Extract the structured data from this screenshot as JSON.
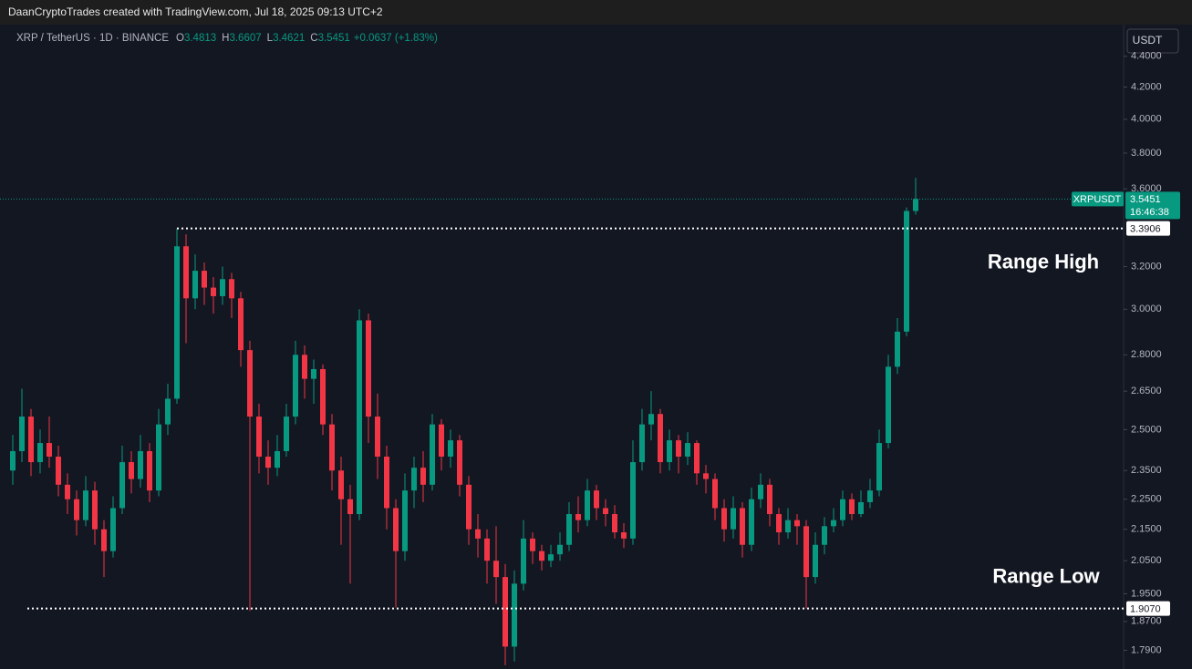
{
  "header": "DaanCryptoTrades created with TradingView.com, Jul 18, 2025 09:13 UTC+2",
  "currency_button": "USDT",
  "chart_data": {
    "type": "candlestick",
    "title": "XRP / TetherUS · 1D · BINANCE",
    "ohlc_labels": [
      "O",
      "H",
      "L",
      "C"
    ],
    "change": "+0.0637 (+1.83%)",
    "log_scale": true,
    "grid": false,
    "up_color": "#089981",
    "down_color": "#f23645",
    "ylim": [
      1.74,
      4.61
    ],
    "yticks": [
      {
        "value": 4.4,
        "label": "4.4000"
      },
      {
        "value": 4.2,
        "label": "4.2000"
      },
      {
        "value": 4.0,
        "label": "4.0000"
      },
      {
        "value": 3.8,
        "label": "3.8000"
      },
      {
        "value": 3.6,
        "label": "3.6000"
      },
      {
        "value": 3.2,
        "label": "3.2000"
      },
      {
        "value": 3.0,
        "label": "3.0000"
      },
      {
        "value": 2.8,
        "label": "2.8000"
      },
      {
        "value": 2.65,
        "label": "2.6500"
      },
      {
        "value": 2.5,
        "label": "2.5000"
      },
      {
        "value": 2.35,
        "label": "2.3500"
      },
      {
        "value": 2.25,
        "label": "2.2500"
      },
      {
        "value": 2.15,
        "label": "2.1500"
      },
      {
        "value": 2.05,
        "label": "2.0500"
      },
      {
        "value": 1.95,
        "label": "1.9500"
      },
      {
        "value": 1.87,
        "label": "1.8700"
      },
      {
        "value": 1.79,
        "label": "1.7900"
      }
    ],
    "series": [
      {
        "name": "XRPUSDT",
        "countdown": "16:46:38",
        "open": [
          2.35,
          2.42,
          2.55,
          2.38,
          2.45,
          2.4,
          2.3,
          2.25,
          2.18,
          2.28,
          2.15,
          2.08,
          2.22,
          2.38,
          2.32,
          2.42,
          2.28,
          2.52,
          2.62,
          3.3,
          3.05,
          3.18,
          3.1,
          3.06,
          3.14,
          3.05,
          2.82,
          2.55,
          2.4,
          2.36,
          2.42,
          2.55,
          2.8,
          2.7,
          2.74,
          2.52,
          2.35,
          2.25,
          2.2,
          2.95,
          2.55,
          2.4,
          2.22,
          2.08,
          2.28,
          2.36,
          2.3,
          2.52,
          2.4,
          2.46,
          2.3,
          2.15,
          2.12,
          2.05,
          2.0,
          1.8,
          1.98,
          2.12,
          2.08,
          2.05,
          2.07,
          2.1,
          2.2,
          2.18,
          2.28,
          2.22,
          2.2,
          2.14,
          2.12,
          2.38,
          2.52,
          2.56,
          2.38,
          2.46,
          2.4,
          2.45,
          2.34,
          2.32,
          2.22,
          2.15,
          2.22,
          2.1,
          2.25,
          2.3,
          2.2,
          2.14,
          2.18,
          2.16,
          2.0,
          2.1,
          2.16,
          2.18,
          2.25,
          2.2,
          2.24,
          2.28,
          2.45,
          2.75,
          2.9,
          3.4813
        ],
        "high": [
          2.48,
          2.66,
          2.58,
          2.5,
          2.55,
          2.44,
          2.34,
          2.28,
          2.33,
          2.31,
          2.18,
          2.26,
          2.44,
          2.42,
          2.48,
          2.45,
          2.58,
          2.68,
          3.39,
          3.36,
          3.26,
          3.22,
          3.15,
          3.2,
          3.17,
          3.08,
          2.86,
          2.6,
          2.46,
          2.48,
          2.6,
          2.86,
          2.84,
          2.78,
          2.76,
          2.56,
          2.4,
          2.3,
          3.0,
          2.98,
          2.64,
          2.44,
          2.25,
          2.34,
          2.4,
          2.42,
          2.56,
          2.54,
          2.5,
          2.48,
          2.33,
          2.2,
          2.15,
          2.16,
          2.04,
          2.02,
          2.18,
          2.14,
          2.1,
          2.1,
          2.14,
          2.24,
          2.26,
          2.32,
          2.3,
          2.25,
          2.23,
          2.17,
          2.46,
          2.58,
          2.65,
          2.58,
          2.5,
          2.48,
          2.49,
          2.46,
          2.37,
          2.34,
          2.25,
          2.26,
          2.24,
          2.29,
          2.34,
          2.32,
          2.22,
          2.22,
          2.2,
          2.18,
          2.14,
          2.19,
          2.22,
          2.28,
          2.27,
          2.28,
          2.32,
          2.5,
          2.8,
          2.96,
          3.5,
          3.6607
        ],
        "low": [
          2.3,
          2.38,
          2.33,
          2.34,
          2.36,
          2.26,
          2.2,
          2.13,
          2.16,
          2.1,
          2.0,
          2.06,
          2.2,
          2.27,
          2.29,
          2.24,
          2.26,
          2.48,
          2.6,
          2.85,
          3.0,
          3.02,
          2.98,
          3.02,
          2.96,
          2.75,
          1.9,
          2.34,
          2.3,
          2.33,
          2.4,
          2.52,
          2.62,
          2.6,
          2.48,
          2.28,
          2.1,
          1.98,
          2.18,
          2.45,
          2.32,
          2.15,
          1.91,
          2.05,
          2.22,
          2.24,
          2.28,
          2.35,
          2.36,
          2.26,
          2.1,
          2.06,
          1.98,
          1.92,
          1.75,
          1.76,
          1.96,
          2.04,
          2.02,
          2.03,
          2.05,
          2.08,
          2.14,
          2.16,
          2.18,
          2.16,
          2.12,
          2.09,
          2.1,
          2.35,
          2.46,
          2.34,
          2.35,
          2.34,
          2.37,
          2.3,
          2.27,
          2.18,
          2.11,
          2.12,
          2.06,
          2.08,
          2.22,
          2.16,
          2.1,
          2.12,
          2.1,
          1.907,
          1.98,
          2.07,
          2.14,
          2.16,
          2.18,
          2.19,
          2.22,
          2.26,
          2.43,
          2.72,
          2.88,
          3.4621
        ],
        "close": [
          2.42,
          2.55,
          2.38,
          2.45,
          2.4,
          2.3,
          2.25,
          2.18,
          2.28,
          2.15,
          2.08,
          2.22,
          2.38,
          2.32,
          2.42,
          2.28,
          2.52,
          2.62,
          3.3,
          3.05,
          3.18,
          3.1,
          3.06,
          3.14,
          3.05,
          2.82,
          2.55,
          2.4,
          2.36,
          2.42,
          2.55,
          2.8,
          2.7,
          2.74,
          2.52,
          2.35,
          2.25,
          2.2,
          2.95,
          2.55,
          2.4,
          2.22,
          2.08,
          2.28,
          2.36,
          2.3,
          2.52,
          2.4,
          2.46,
          2.3,
          2.15,
          2.12,
          2.05,
          2.0,
          1.8,
          1.98,
          2.12,
          2.08,
          2.05,
          2.07,
          2.1,
          2.2,
          2.18,
          2.28,
          2.22,
          2.2,
          2.14,
          2.12,
          2.38,
          2.52,
          2.56,
          2.38,
          2.46,
          2.4,
          2.45,
          2.34,
          2.32,
          2.22,
          2.15,
          2.22,
          2.1,
          2.25,
          2.3,
          2.2,
          2.14,
          2.18,
          2.16,
          2.0,
          2.1,
          2.16,
          2.18,
          2.25,
          2.2,
          2.24,
          2.28,
          2.45,
          2.75,
          2.9,
          3.4813,
          3.5451
        ]
      }
    ],
    "levels": [
      {
        "name": "Range High",
        "price": 3.3906
      },
      {
        "name": "Range Low",
        "price": 1.907,
        "price_label": "1.9070"
      }
    ]
  }
}
